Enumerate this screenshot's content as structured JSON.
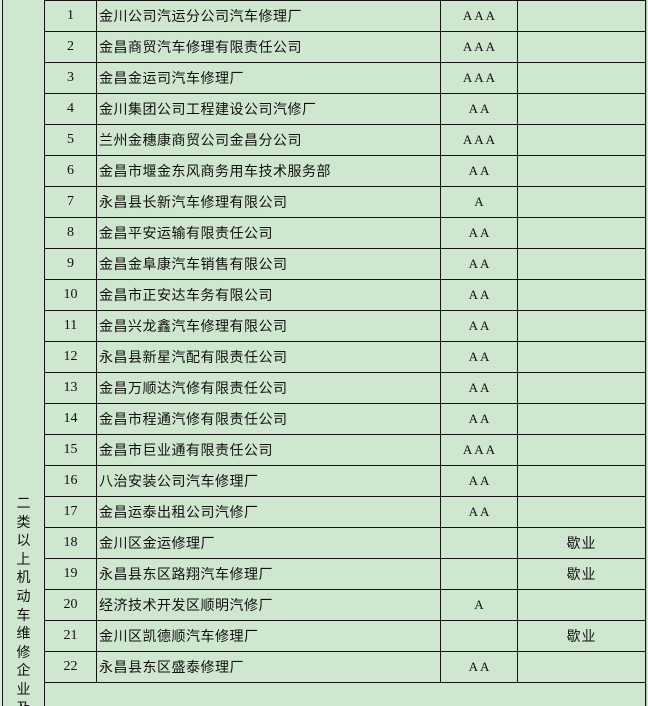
{
  "left_header": {
    "vertical_text": "二类以上机动车维修企业及"
  },
  "table": {
    "rows": [
      {
        "no": "1",
        "name": "金川公司汽运分公司汽车修理厂",
        "rating": "AAA",
        "status": ""
      },
      {
        "no": "2",
        "name": "金昌商贸汽车修理有限责任公司",
        "rating": "AAA",
        "status": ""
      },
      {
        "no": "3",
        "name": "金昌金运司汽车修理厂",
        "rating": "AAA",
        "status": ""
      },
      {
        "no": "4",
        "name": "金川集团公司工程建设公司汽修厂",
        "rating": "AA",
        "status": ""
      },
      {
        "no": "5",
        "name": "兰州金穗康商贸公司金昌分公司",
        "rating": "AAA",
        "status": ""
      },
      {
        "no": "6",
        "name": "金昌市堰金东风商务用车技术服务部",
        "rating": "AA",
        "status": ""
      },
      {
        "no": "7",
        "name": "永昌县长新汽车修理有限公司",
        "rating": "A",
        "status": ""
      },
      {
        "no": "8",
        "name": "金昌平安运输有限责任公司",
        "rating": "AA",
        "status": ""
      },
      {
        "no": "9",
        "name": "金昌金阜康汽车销售有限公司",
        "rating": "AA",
        "status": ""
      },
      {
        "no": "10",
        "name": "金昌市正安达车务有限公司",
        "rating": "AA",
        "status": ""
      },
      {
        "no": "11",
        "name": "金昌兴龙鑫汽车修理有限公司",
        "rating": "AA",
        "status": ""
      },
      {
        "no": "12",
        "name": "永昌县新星汽配有限责任公司",
        "rating": "AA",
        "status": ""
      },
      {
        "no": "13",
        "name": "金昌万顺达汽修有限责任公司",
        "rating": "AA",
        "status": ""
      },
      {
        "no": "14",
        "name": "金昌市程通汽修有限责任公司",
        "rating": "AA",
        "status": ""
      },
      {
        "no": "15",
        "name": "金昌市巨业通有限责任公司",
        "rating": "AAA",
        "status": ""
      },
      {
        "no": "16",
        "name": "八治安装公司汽车修理厂",
        "rating": "AA",
        "status": ""
      },
      {
        "no": "17",
        "name": "金昌运泰出租公司汽修厂",
        "rating": "AA",
        "status": ""
      },
      {
        "no": "18",
        "name": "金川区金运修理厂",
        "rating": "",
        "status": "歇业"
      },
      {
        "no": "19",
        "name": "永昌县东区路翔汽车修理厂",
        "rating": "",
        "status": "歇业"
      },
      {
        "no": "20",
        "name": "经济技术开发区顺明汽修厂",
        "rating": "A",
        "status": ""
      },
      {
        "no": "21",
        "name": "金川区凯德顺汽车修理厂",
        "rating": "",
        "status": "歇业"
      },
      {
        "no": "22",
        "name": "永昌县东区盛泰修理厂",
        "rating": "AA",
        "status": ""
      }
    ]
  },
  "colors": {
    "cell_bg": "#cfe6cf",
    "margin_bg": "#daecda",
    "grid_line": "#141414",
    "faint_gridline": "#adc3ad"
  }
}
